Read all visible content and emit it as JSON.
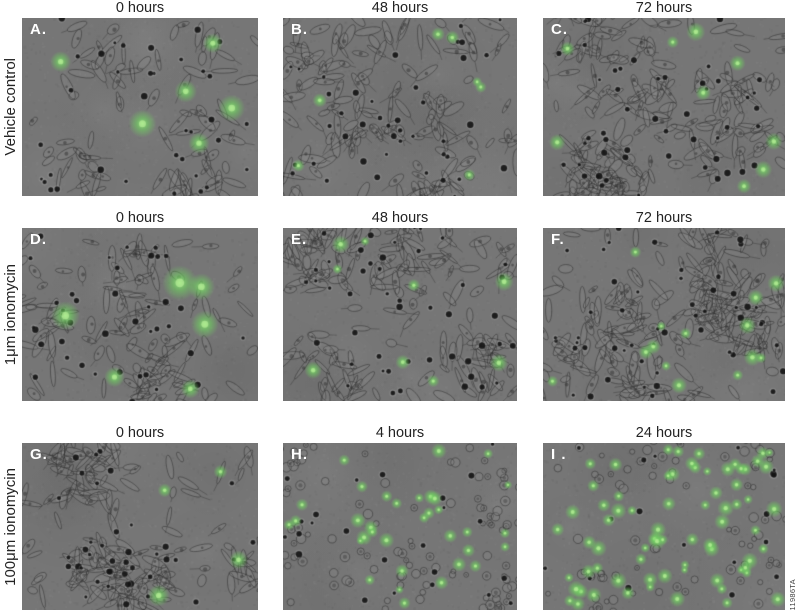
{
  "figure": {
    "code": "11986TA",
    "colors": {
      "background": "#ffffff",
      "micrograph_gray": "#767676",
      "fluorescent_green": "#6ed25f",
      "label_text": "#232323",
      "panel_letter": "#ffffff"
    },
    "rows": [
      {
        "label": "Vehicle control",
        "panels": [
          {
            "letter": "A.",
            "time": "0 hours",
            "render": {
              "seed": 1011,
              "cell_type": "spindle",
              "cells": 95,
              "clusters": 5,
              "dark_dots": 38,
              "green_cells": 6,
              "green_radius": 6.5
            }
          },
          {
            "letter": "B.",
            "time": "48 hours",
            "render": {
              "seed": 2022,
              "cell_type": "spindle",
              "cells": 160,
              "clusters": 7,
              "dark_dots": 48,
              "green_cells": 7,
              "green_radius": 3.6
            }
          },
          {
            "letter": "C.",
            "time": "72 hours",
            "render": {
              "seed": 3033,
              "cell_type": "spindle",
              "cells": 215,
              "clusters": 8,
              "dark_dots": 52,
              "green_cells": 9,
              "green_radius": 3.4
            }
          }
        ]
      },
      {
        "label": "1μm ionomycin",
        "panels": [
          {
            "letter": "D.",
            "time": "0 hours",
            "render": {
              "seed": 4044,
              "cell_type": "spindle",
              "cells": 135,
              "clusters": 6,
              "dark_dots": 46,
              "green_cells": 6,
              "green_radius": 6.2
            }
          },
          {
            "letter": "E.",
            "time": "48 hours",
            "render": {
              "seed": 5055,
              "cell_type": "spindle",
              "cells": 175,
              "clusters": 7,
              "dark_dots": 52,
              "green_cells": 9,
              "green_radius": 3.2
            }
          },
          {
            "letter": "F.",
            "time": "72 hours",
            "render": {
              "seed": 6066,
              "cell_type": "spindle",
              "cells": 225,
              "clusters": 8,
              "dark_dots": 56,
              "green_cells": 14,
              "green_radius": 3.2
            }
          }
        ]
      },
      {
        "label": "100μm ionomycin",
        "panels": [
          {
            "letter": "G.",
            "time": "0 hours",
            "render": {
              "seed": 7077,
              "cell_type": "spindle",
              "cells": 185,
              "clusters": 7,
              "dark_dots": 40,
              "green_cells": 4,
              "green_radius": 4.0
            }
          },
          {
            "letter": "H.",
            "time": "4 hours",
            "render": {
              "seed": 8088,
              "cell_type": "round",
              "cells": 125,
              "clusters": 5,
              "dark_dots": 28,
              "green_cells": 34,
              "green_radius": 2.9
            }
          },
          {
            "letter": "I .",
            "time": "24 hours",
            "render": {
              "seed": 9099,
              "cell_type": "round",
              "cells": 95,
              "clusters": 4,
              "dark_dots": 20,
              "green_cells": 72,
              "green_radius": 3.0
            }
          }
        ]
      }
    ]
  }
}
